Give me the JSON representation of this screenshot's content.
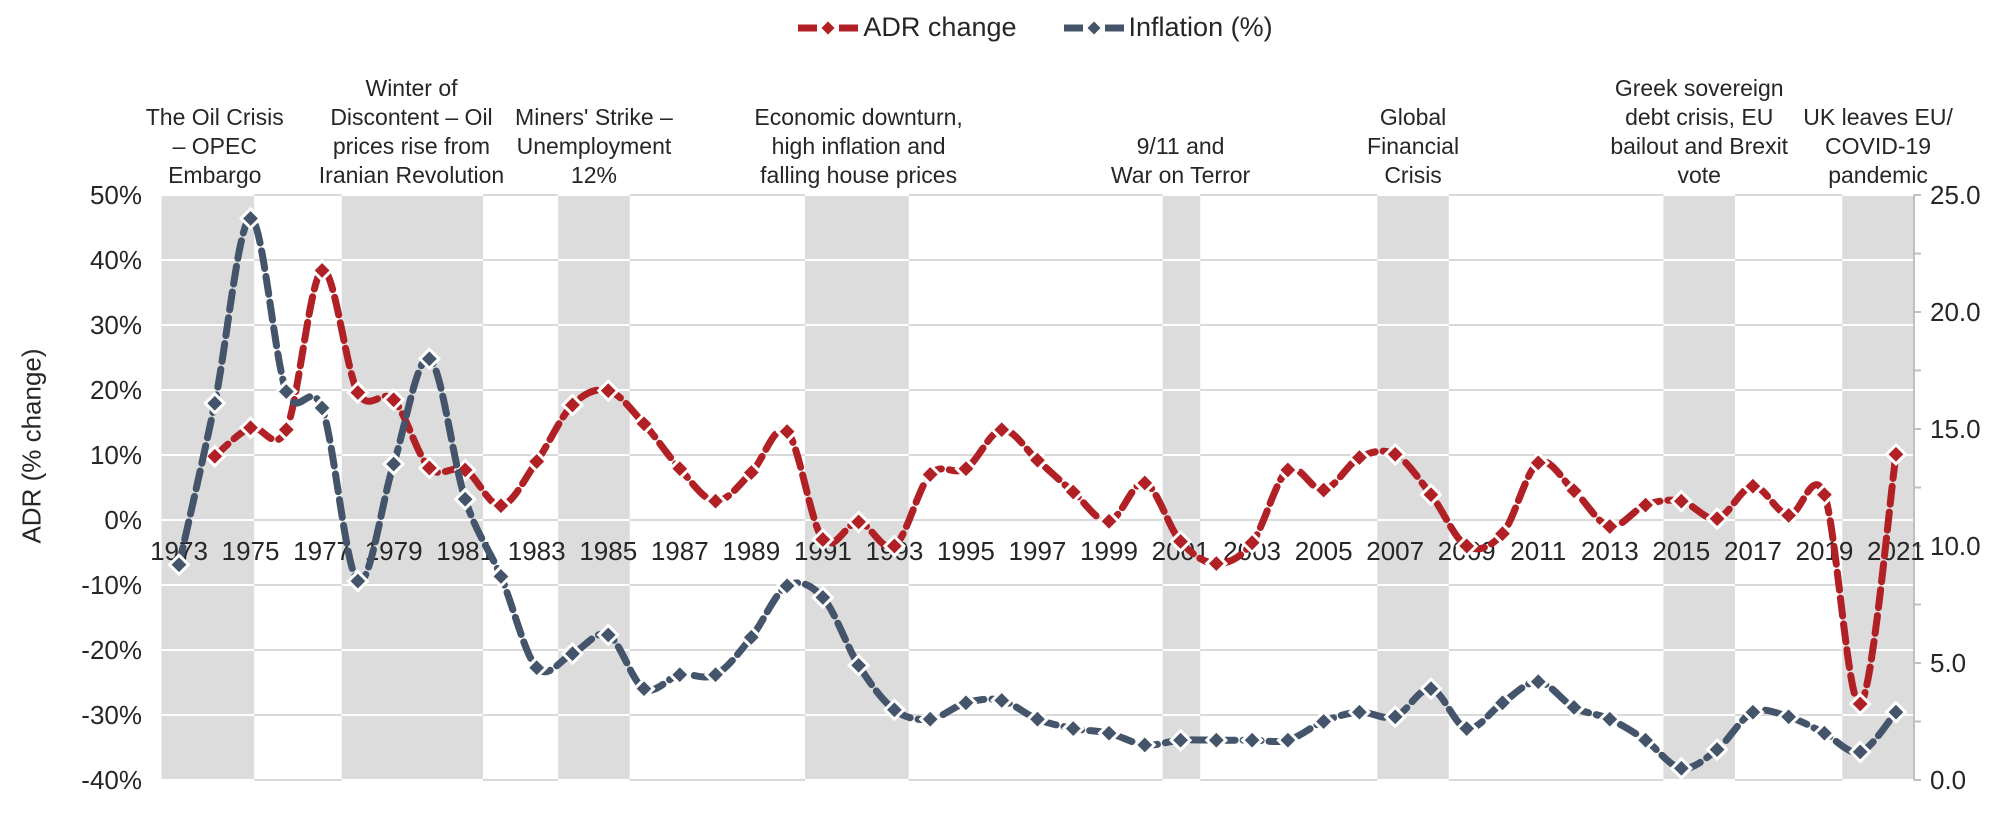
{
  "legend": {
    "adr_label": "ADR change",
    "inflation_label": "Inflation (%)"
  },
  "chart_data": {
    "type": "line",
    "legend_position": "top",
    "grid": true,
    "background_color": "#ffffff",
    "band_color": "#DCDCDC",
    "gridline_color": "#D9D9D9",
    "text_color": "#262626",
    "axis_line_color": "#BFBFBF",
    "x": [
      1973,
      1974,
      1975,
      1976,
      1977,
      1978,
      1979,
      1980,
      1981,
      1982,
      1983,
      1984,
      1985,
      1986,
      1987,
      1988,
      1989,
      1990,
      1991,
      1992,
      1993,
      1994,
      1995,
      1996,
      1997,
      1998,
      1999,
      2000,
      2001,
      2002,
      2003,
      2004,
      2005,
      2006,
      2007,
      2008,
      2009,
      2010,
      2011,
      2012,
      2013,
      2014,
      2015,
      2016,
      2017,
      2018,
      2019,
      2020,
      2021
    ],
    "x_tick_years": [
      1973,
      1975,
      1977,
      1979,
      1981,
      1983,
      1985,
      1987,
      1989,
      1991,
      1993,
      1995,
      1997,
      1999,
      2001,
      2003,
      2005,
      2007,
      2009,
      2011,
      2013,
      2015,
      2017,
      2019,
      2021
    ],
    "series": [
      {
        "name": "ADR change",
        "axis": "left",
        "color": "#B02025",
        "values": [
          null,
          9.8,
          14.2,
          13.9,
          38.4,
          19.6,
          18.5,
          8.0,
          7.7,
          2.2,
          9.0,
          17.7,
          19.9,
          14.8,
          7.9,
          2.9,
          7.3,
          13.6,
          -3.0,
          -0.3,
          -4.0,
          7.0,
          7.9,
          13.9,
          9.2,
          4.3,
          -0.2,
          5.7,
          -3.3,
          -6.7,
          -3.5,
          7.7,
          4.6,
          9.6,
          10.1,
          3.9,
          -4.0,
          -2.1,
          8.8,
          4.5,
          -1.0,
          2.3,
          2.9,
          0.2,
          5.2,
          0.7,
          3.9,
          -28.3,
          10.1
        ]
      },
      {
        "name": "Inflation (%)",
        "axis": "right",
        "color": "#44546A",
        "values": [
          9.2,
          16.1,
          24.0,
          16.6,
          15.9,
          8.5,
          13.5,
          18.0,
          12.0,
          8.7,
          4.8,
          5.4,
          6.2,
          3.9,
          4.5,
          4.5,
          6.1,
          8.3,
          7.8,
          4.9,
          3.0,
          2.6,
          3.3,
          3.4,
          2.6,
          2.2,
          2.0,
          1.5,
          1.7,
          1.7,
          1.7,
          1.7,
          2.5,
          2.9,
          2.7,
          3.9,
          2.2,
          3.3,
          4.2,
          3.1,
          2.6,
          1.7,
          0.5,
          1.3,
          2.9,
          2.7,
          2.0,
          1.2,
          2.9
        ]
      }
    ],
    "left_axis": {
      "title": "ADR (% change)",
      "min": -40,
      "max": 50,
      "step": 10,
      "tick_labels": [
        "50%",
        "40%",
        "30%",
        "20%",
        "10%",
        "0%",
        "-10%",
        "-20%",
        "-30%",
        "-40%"
      ]
    },
    "right_axis": {
      "min": 0,
      "max": 25,
      "step": 5,
      "minor_step": 2.5,
      "tick_labels": [
        "25.0",
        "20.0",
        "15.0",
        "10.0",
        "5.0",
        "0.0"
      ]
    },
    "shaded_bands": [
      {
        "from": 1972.5,
        "to": 1975.1
      },
      {
        "from": 1977.55,
        "to": 1981.5
      },
      {
        "from": 1983.6,
        "to": 1985.6
      },
      {
        "from": 1990.5,
        "to": 1993.4
      },
      {
        "from": 2000.5,
        "to": 2001.55
      },
      {
        "from": 2006.5,
        "to": 2008.5
      },
      {
        "from": 2014.5,
        "to": 2016.5
      },
      {
        "from": 2019.5,
        "to": 2021.5
      }
    ],
    "annotations": [
      {
        "lines": [
          "The Oil Crisis",
          "– OPEC",
          "Embargo"
        ],
        "x_year": 1974.0
      },
      {
        "lines": [
          "Winter of",
          "Discontent – Oil",
          "prices rise from",
          "Iranian Revolution"
        ],
        "x_year": 1979.5
      },
      {
        "lines": [
          "Miners' Strike –",
          "Unemployment",
          "12%"
        ],
        "x_year": 1984.6
      },
      {
        "lines": [
          "Economic downturn,",
          "high inflation and",
          "falling house prices"
        ],
        "x_year": 1992.0
      },
      {
        "lines": [
          "9/11 and",
          "War on Terror"
        ],
        "x_year": 2001.0
      },
      {
        "lines": [
          "Global",
          "Financial",
          "Crisis"
        ],
        "x_year": 2007.5
      },
      {
        "lines": [
          "Greek sovereign",
          "debt crisis, EU",
          "bailout and Brexit",
          "vote"
        ],
        "x_year": 2015.5
      },
      {
        "lines": [
          "UK leaves EU/",
          "COVID-19",
          "pandemic"
        ],
        "x_year": 2020.5
      }
    ]
  }
}
